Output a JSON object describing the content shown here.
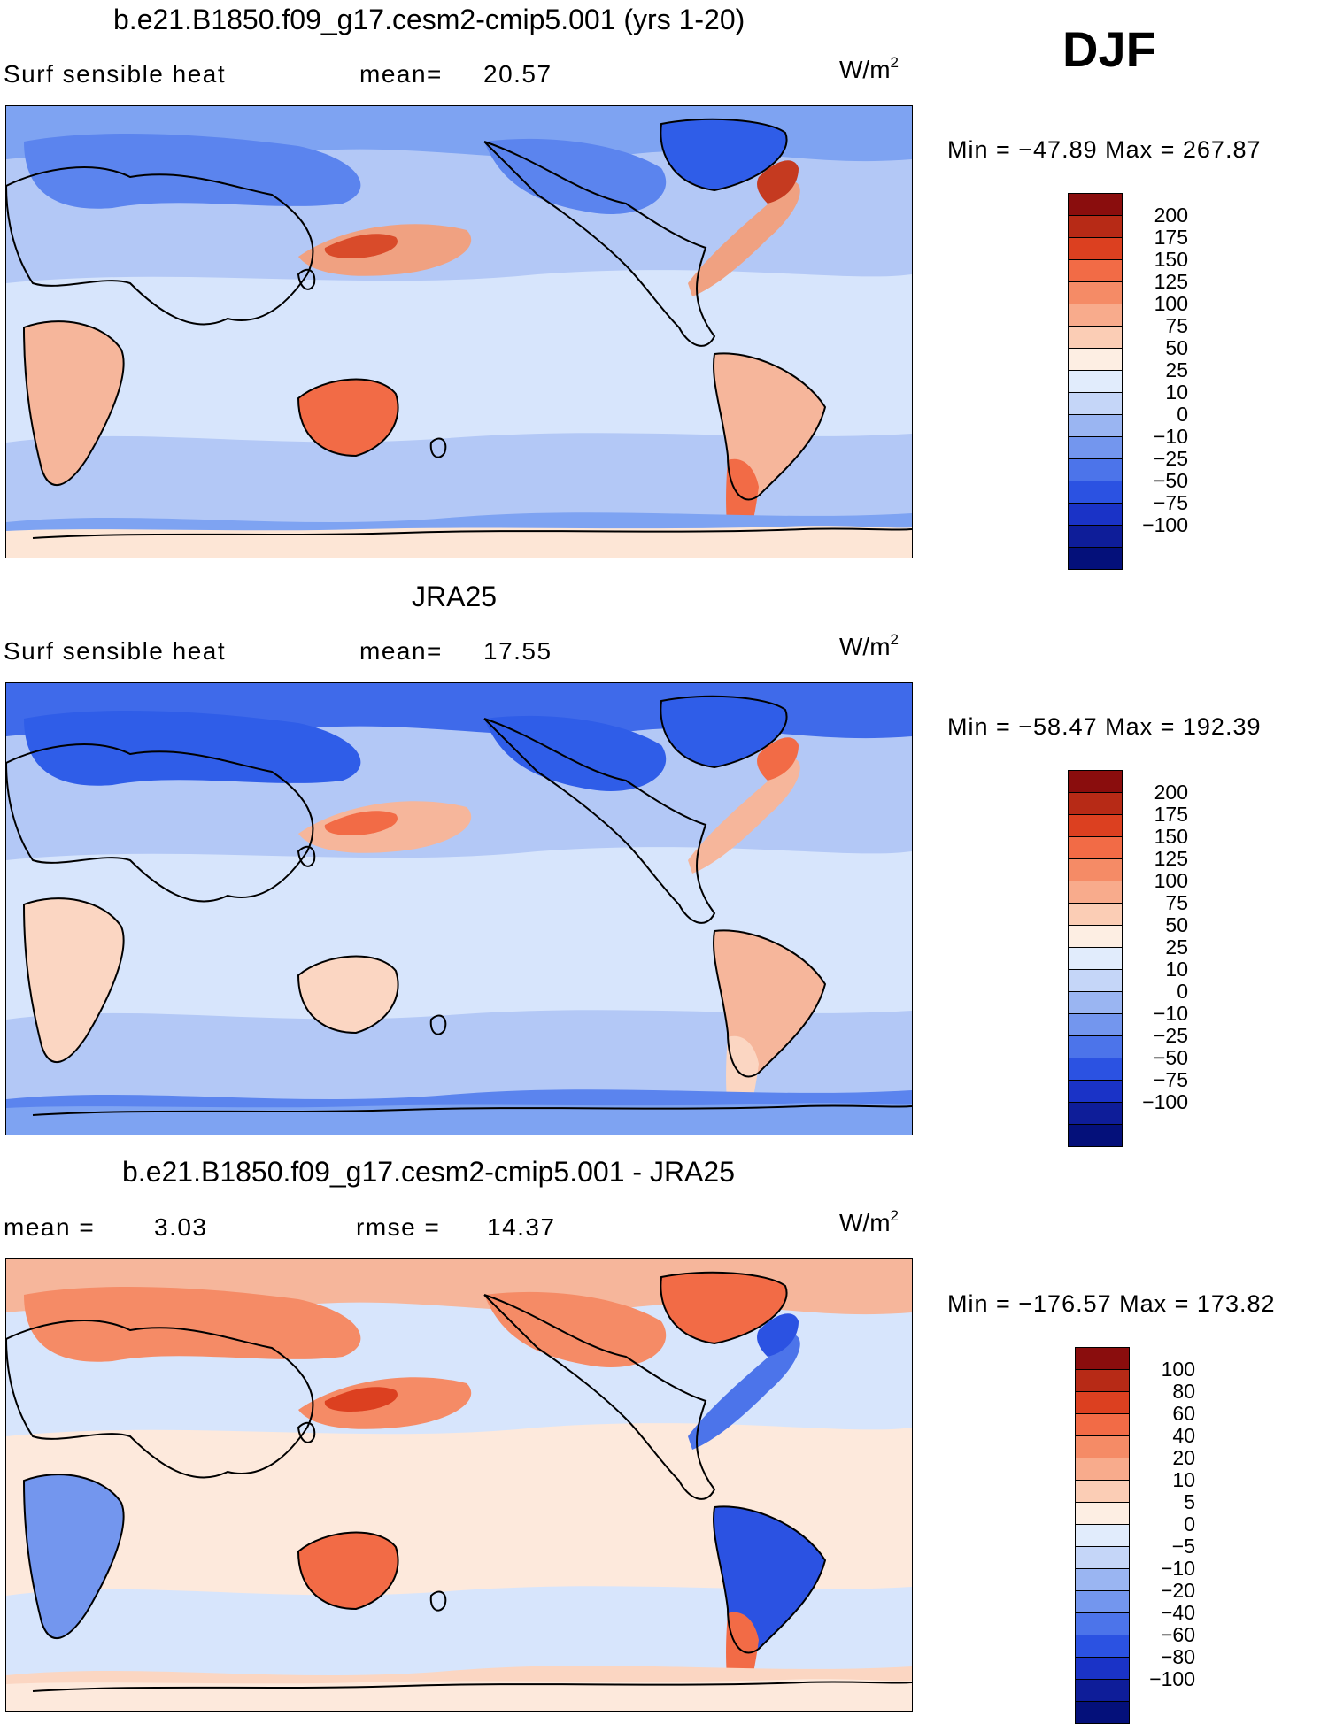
{
  "season": "DJF",
  "panels": [
    {
      "title": "b.e21.B1850.f09_g17.cesm2-cmip5.001 (yrs 1-20)",
      "left_label": "Surf sensible heat",
      "stat1_label": "mean=",
      "stat1_value": "20.57",
      "stat2_label": "",
      "stat2_value": "",
      "unit_base": "W/m",
      "unit_exp": "2",
      "range_text": "Min = −47.89 Max = 267.87",
      "map": {
        "bg": "#b3c8f6",
        "patches": [
          {
            "c": "#7ea3f2",
            "shape": "band_top"
          },
          {
            "c": "#5b84ee",
            "shape": "eurasia_n"
          },
          {
            "c": "#2f5de8",
            "shape": "greenland"
          },
          {
            "c": "#d7e5fc",
            "shape": "tropics"
          },
          {
            "c": "#f0a181",
            "shape": "kuroshio"
          },
          {
            "c": "#d94b2a",
            "shape": "kuroshio_core"
          },
          {
            "c": "#f0a181",
            "shape": "gulfstream"
          },
          {
            "c": "#c53a20",
            "shape": "gulfstream_core"
          },
          {
            "c": "#f26b46",
            "shape": "australia"
          },
          {
            "c": "#f6b69b",
            "shape": "africa"
          },
          {
            "c": "#f6b69b",
            "shape": "samerica"
          },
          {
            "c": "#f26b46",
            "shape": "argentina"
          },
          {
            "c": "#7ea3f2",
            "shape": "southern_ocean"
          },
          {
            "c": "#fde6d6",
            "shape": "antarctica"
          }
        ]
      },
      "colorbar": {
        "labels": [
          "200",
          "175",
          "150",
          "125",
          "100",
          "75",
          "50",
          "25",
          "10",
          "0",
          "−10",
          "−25",
          "−50",
          "−75",
          "−100"
        ],
        "colors": [
          "#8a0d0d",
          "#b72a16",
          "#dc4020",
          "#f26b46",
          "#f58b66",
          "#f8ab8c",
          "#fbcdb5",
          "#fdeee3",
          "#e1ecfc",
          "#c5d6f8",
          "#9ab5f2",
          "#7396ee",
          "#4c74ea",
          "#2b52e2",
          "#1a33c7",
          "#0e1d99",
          "#04107a"
        ]
      }
    },
    {
      "title": "JRA25",
      "left_label": "Surf sensible heat",
      "stat1_label": "mean=",
      "stat1_value": "17.55",
      "stat2_label": "",
      "stat2_value": "",
      "unit_base": "W/m",
      "unit_exp": "2",
      "range_text": "Min = −58.47 Max = 192.39",
      "map": {
        "bg": "#b3c8f6",
        "patches": [
          {
            "c": "#3f6aea",
            "shape": "band_top"
          },
          {
            "c": "#2f5de8",
            "shape": "eurasia_n"
          },
          {
            "c": "#2f5de8",
            "shape": "greenland"
          },
          {
            "c": "#d7e5fc",
            "shape": "tropics"
          },
          {
            "c": "#f6b69b",
            "shape": "kuroshio"
          },
          {
            "c": "#f26b46",
            "shape": "kuroshio_core"
          },
          {
            "c": "#f6b69b",
            "shape": "gulfstream"
          },
          {
            "c": "#f26b46",
            "shape": "gulfstream_core"
          },
          {
            "c": "#fbd6c2",
            "shape": "australia"
          },
          {
            "c": "#fbd6c2",
            "shape": "africa"
          },
          {
            "c": "#f6b69b",
            "shape": "samerica"
          },
          {
            "c": "#fbd6c2",
            "shape": "argentina"
          },
          {
            "c": "#5b84ee",
            "shape": "southern_ocean"
          },
          {
            "c": "#7ea3f2",
            "shape": "antarctica"
          }
        ]
      },
      "colorbar": {
        "labels": [
          "200",
          "175",
          "150",
          "125",
          "100",
          "75",
          "50",
          "25",
          "10",
          "0",
          "−10",
          "−25",
          "−50",
          "−75",
          "−100"
        ],
        "colors": [
          "#8a0d0d",
          "#b72a16",
          "#dc4020",
          "#f26b46",
          "#f58b66",
          "#f8ab8c",
          "#fbcdb5",
          "#fdeee3",
          "#e1ecfc",
          "#c5d6f8",
          "#9ab5f2",
          "#7396ee",
          "#4c74ea",
          "#2b52e2",
          "#1a33c7",
          "#0e1d99",
          "#04107a"
        ]
      }
    },
    {
      "title": "b.e21.B1850.f09_g17.cesm2-cmip5.001 - JRA25",
      "left_label": "mean =",
      "stat1_label": "",
      "stat1_value": "3.03",
      "stat2_label": "rmse =",
      "stat2_value": "14.37",
      "unit_base": "W/m",
      "unit_exp": "2",
      "range_text": "Min = −176.57 Max = 173.82",
      "map": {
        "bg": "#d7e5fc",
        "patches": [
          {
            "c": "#f6b69b",
            "shape": "band_top"
          },
          {
            "c": "#f58b66",
            "shape": "eurasia_n"
          },
          {
            "c": "#f26b46",
            "shape": "greenland"
          },
          {
            "c": "#fde9dc",
            "shape": "tropics"
          },
          {
            "c": "#f58b66",
            "shape": "kuroshio"
          },
          {
            "c": "#dc4020",
            "shape": "kuroshio_core"
          },
          {
            "c": "#4c74ea",
            "shape": "gulfstream"
          },
          {
            "c": "#2b52e2",
            "shape": "gulfstream_core"
          },
          {
            "c": "#f26b46",
            "shape": "australia"
          },
          {
            "c": "#7396ee",
            "shape": "africa"
          },
          {
            "c": "#2b52e2",
            "shape": "samerica"
          },
          {
            "c": "#f26b46",
            "shape": "argentina"
          },
          {
            "c": "#fbd6c2",
            "shape": "southern_ocean"
          },
          {
            "c": "#fde9dc",
            "shape": "antarctica"
          }
        ]
      },
      "colorbar": {
        "labels": [
          "100",
          "80",
          "60",
          "40",
          "20",
          "10",
          "5",
          "0",
          "−5",
          "−10",
          "−20",
          "−40",
          "−60",
          "−80",
          "−100"
        ],
        "colors": [
          "#8a0d0d",
          "#b72a16",
          "#dc4020",
          "#f26b46",
          "#f58b66",
          "#f8ab8c",
          "#fbcdb5",
          "#fdeee3",
          "#e1ecfc",
          "#c5d6f8",
          "#9ab5f2",
          "#7396ee",
          "#4c74ea",
          "#2b52e2",
          "#1a33c7",
          "#0e1d99",
          "#04107a"
        ]
      }
    }
  ]
}
